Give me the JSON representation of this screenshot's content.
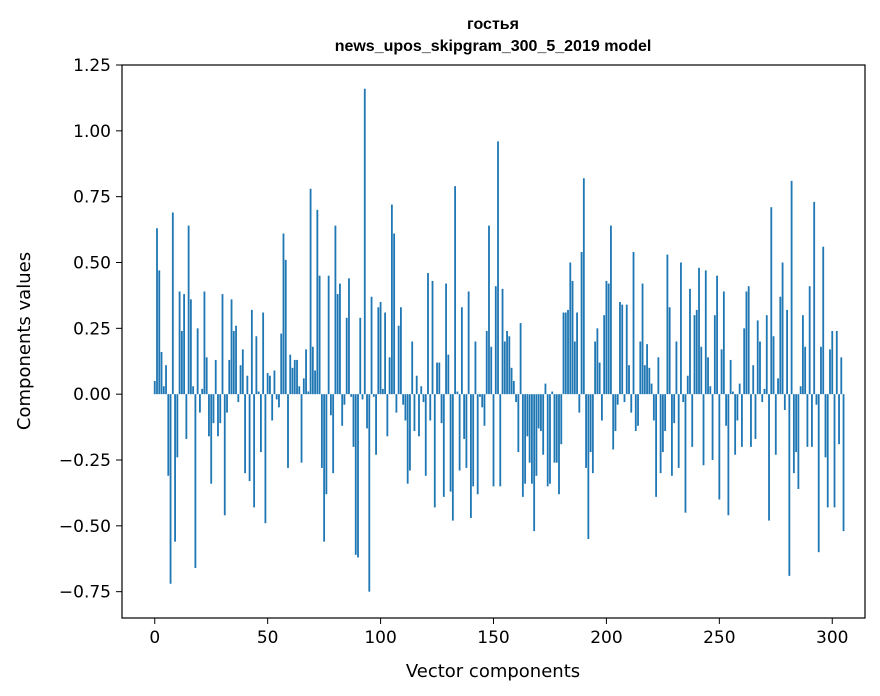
{
  "chart_data": {
    "type": "bar",
    "title": "гостья",
    "subtitle": "news_upos_skipgram_300_5_2019 model",
    "xlabel": "Vector components",
    "ylabel": "Components values",
    "xlim": [
      -14.5,
      314.5
    ],
    "ylim": [
      -0.85,
      1.25
    ],
    "xticks": [
      0,
      50,
      100,
      150,
      200,
      250,
      300
    ],
    "yticks": [
      -0.75,
      -0.5,
      -0.25,
      0.0,
      0.25,
      0.5,
      0.75,
      1.0,
      1.25
    ],
    "ytick_labels": [
      "−0.75",
      "−0.50",
      "−0.25",
      "0.00",
      "0.25",
      "0.50",
      "0.75",
      "1.00",
      "1.25"
    ],
    "bar_color": "#1f77b4",
    "values": [
      0.05,
      0.63,
      0.47,
      0.16,
      0.03,
      0.11,
      -0.31,
      -0.72,
      0.69,
      -0.56,
      -0.24,
      0.39,
      0.24,
      0.38,
      -0.17,
      0.64,
      0.36,
      0.03,
      -0.66,
      0.25,
      -0.07,
      0.02,
      0.39,
      0.14,
      -0.16,
      -0.34,
      -0.11,
      0.13,
      -0.16,
      -0.11,
      0.38,
      -0.46,
      -0.07,
      0.13,
      0.36,
      0.24,
      0.26,
      -0.03,
      0.11,
      0.17,
      -0.3,
      0.07,
      -0.33,
      0.32,
      -0.43,
      0.22,
      0.01,
      -0.22,
      0.31,
      -0.49,
      0.08,
      0.07,
      -0.1,
      0.09,
      -0.02,
      -0.05,
      0.23,
      0.61,
      0.51,
      -0.28,
      0.15,
      0.1,
      0.13,
      0.13,
      0.03,
      -0.26,
      0.06,
      0.17,
      0.01,
      0.78,
      0.18,
      0.09,
      0.7,
      0.45,
      -0.28,
      -0.56,
      -0.38,
      0.45,
      -0.08,
      -0.3,
      0.64,
      0.38,
      0.42,
      -0.12,
      -0.04,
      0.29,
      0.44,
      -0.01,
      -0.2,
      -0.61,
      -0.62,
      0.29,
      -0.02,
      1.16,
      -0.13,
      -0.75,
      0.37,
      -0.01,
      -0.23,
      0.33,
      0.35,
      0.02,
      0.31,
      -0.16,
      0.14,
      0.72,
      0.61,
      -0.07,
      0.26,
      0.33,
      -0.04,
      -0.1,
      -0.34,
      -0.29,
      0.2,
      -0.14,
      0.07,
      -0.16,
      0.03,
      -0.03,
      -0.31,
      0.46,
      -0.1,
      0.43,
      -0.43,
      0.12,
      0.12,
      -0.11,
      -0.39,
      0.42,
      0.15,
      -0.37,
      -0.48,
      0.79,
      0.01,
      -0.29,
      0.33,
      -0.17,
      -0.28,
      0.39,
      -0.47,
      -0.35,
      0.2,
      -0.38,
      -0.01,
      -0.05,
      -0.12,
      0.24,
      0.64,
      0.18,
      -0.35,
      0.41,
      0.96,
      -0.35,
      0.4,
      0.2,
      0.24,
      0.22,
      0.1,
      0.05,
      -0.03,
      -0.22,
      0.27,
      -0.39,
      -0.34,
      -0.16,
      -0.26,
      -0.34,
      -0.52,
      -0.31,
      -0.13,
      -0.14,
      -0.23,
      0.04,
      -0.35,
      -0.34,
      0.01,
      -0.26,
      -0.26,
      -0.38,
      -0.19,
      0.31,
      0.31,
      0.32,
      0.5,
      0.43,
      0.2,
      0.31,
      -0.07,
      0.54,
      0.82,
      -0.28,
      -0.55,
      -0.22,
      -0.3,
      0.2,
      0.25,
      0.12,
      -0.1,
      0.3,
      0.43,
      0.42,
      0.64,
      -0.21,
      -0.14,
      -0.04,
      0.35,
      0.34,
      -0.03,
      0.34,
      0.11,
      -0.07,
      0.54,
      -0.14,
      -0.12,
      0.2,
      0.42,
      0.11,
      0.19,
      0.1,
      0.04,
      -0.1,
      -0.39,
      0.14,
      -0.3,
      -0.22,
      -0.14,
      0.53,
      0.33,
      -0.31,
      -0.11,
      0.2,
      -0.28,
      0.5,
      -0.03,
      -0.45,
      0.07,
      0.4,
      -0.2,
      0.3,
      0.32,
      0.48,
      0.18,
      -0.27,
      0.47,
      0.14,
      0.03,
      -0.25,
      0.3,
      0.45,
      -0.4,
      0.17,
      0.39,
      -0.12,
      -0.46,
      0.13,
      0.01,
      -0.23,
      -0.1,
      0.04,
      -0.2,
      0.25,
      0.39,
      0.41,
      -0.2,
      0.11,
      -0.17,
      0.28,
      0.2,
      -0.03,
      0.02,
      0.3,
      -0.48,
      0.71,
      0.22,
      -0.23,
      0.06,
      0.37,
      0.5,
      -0.06,
      0.32,
      -0.69,
      0.81,
      -0.3,
      -0.22,
      -0.36,
      0.03,
      0.3,
      0.18,
      -0.2,
      0.41,
      -0.2,
      0.73,
      -0.04,
      -0.6,
      0.18,
      0.56,
      -0.24,
      -0.43,
      0.17,
      0.24,
      -0.43,
      0.24,
      -0.19,
      0.14,
      -0.52
    ]
  }
}
